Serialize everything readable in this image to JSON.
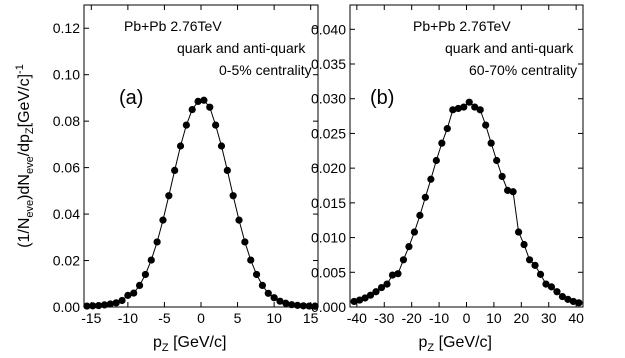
{
  "chart_data": [
    {
      "type": "scatter-line",
      "panel_label": "(a)",
      "annotations": [
        "Pb+Pb 2.76TeV",
        "quark and anti-quark",
        "0-5% centrality"
      ],
      "y_label": [
        {
          "text": "(1/N",
          "pos": "base"
        },
        {
          "text": "eve",
          "pos": "sub"
        },
        {
          "text": ")dN",
          "pos": "base"
        },
        {
          "text": "eve",
          "pos": "sub"
        },
        {
          "text": "/dp",
          "pos": "base"
        },
        {
          "text": "Z",
          "pos": "sub"
        },
        {
          "text": "[GeV/c]",
          "pos": "base"
        },
        {
          "text": "-1",
          "pos": "sup"
        }
      ],
      "x_label": [
        {
          "text": "p",
          "pos": "base"
        },
        {
          "text": "Z",
          "pos": "sub"
        },
        {
          "text": " [GeV/c]",
          "pos": "base"
        }
      ],
      "xlim": [
        -16,
        16
      ],
      "xticks": [
        -15,
        -10,
        -5,
        0,
        5,
        10,
        15
      ],
      "ylim": [
        0,
        0.13
      ],
      "yticks": [
        {
          "value": 0,
          "label": "0.00"
        },
        {
          "value": 0.02,
          "label": "0.02"
        },
        {
          "value": 0.04,
          "label": "0.04"
        },
        {
          "value": 0.06,
          "label": "0.06"
        },
        {
          "value": 0.08,
          "label": "0.08"
        },
        {
          "value": 0.1,
          "label": "0.10"
        },
        {
          "value": 0.12,
          "label": "0.12"
        }
      ],
      "color": "#000000",
      "x": [
        -15.6,
        -14.8,
        -14.0,
        -13.2,
        -12.4,
        -11.6,
        -10.8,
        -10.0,
        -9.2,
        -8.4,
        -7.6,
        -6.8,
        -6.0,
        -5.2,
        -4.4,
        -3.6,
        -2.8,
        -2.0,
        -1.2,
        -0.4,
        0.4,
        1.2,
        2.0,
        2.8,
        3.6,
        4.4,
        5.2,
        6.0,
        6.8,
        7.6,
        8.4,
        9.2,
        10.0,
        10.8,
        11.6,
        12.4,
        13.2,
        14.0,
        14.8,
        15.6
      ],
      "values": [
        0.0004,
        0.0005,
        0.0006,
        0.0009,
        0.0013,
        0.0018,
        0.0028,
        0.005,
        0.006,
        0.0093,
        0.014,
        0.0202,
        0.028,
        0.0374,
        0.0479,
        0.0588,
        0.0693,
        0.0783,
        0.085,
        0.0885,
        0.089,
        0.086,
        0.0783,
        0.0693,
        0.0588,
        0.0479,
        0.0374,
        0.028,
        0.0202,
        0.014,
        0.0093,
        0.0059,
        0.004,
        0.0025,
        0.0016,
        0.001,
        0.0007,
        0.0005,
        0.0004,
        0.0003
      ]
    },
    {
      "type": "scatter-line",
      "panel_label": "(b)",
      "annotations": [
        "Pb+Pb 2.76TeV",
        "quark and anti-quark",
        "60-70% centrality"
      ],
      "x_label": [
        {
          "text": "p",
          "pos": "base"
        },
        {
          "text": "Z",
          "pos": "sub"
        },
        {
          "text": " [GeV/c]",
          "pos": "base"
        }
      ],
      "xlim": [
        -42.5,
        42.5
      ],
      "xticks": [
        -40,
        -30,
        -20,
        -10,
        0,
        10,
        20,
        30,
        40
      ],
      "ylim": [
        0,
        0.0435
      ],
      "yticks": [
        {
          "value": 0,
          "label": "0.000"
        },
        {
          "value": 0.005,
          "label": "0.005"
        },
        {
          "value": 0.01,
          "label": "0.010"
        },
        {
          "value": 0.015,
          "label": "0.015"
        },
        {
          "value": 0.02,
          "label": "0.020"
        },
        {
          "value": 0.025,
          "label": "0.025"
        },
        {
          "value": 0.03,
          "label": "0.030"
        },
        {
          "value": 0.035,
          "label": "0.035"
        },
        {
          "value": 0.04,
          "label": "0.040"
        }
      ],
      "color": "#000000",
      "x": [
        -41,
        -39,
        -37,
        -35,
        -33,
        -31,
        -29,
        -27,
        -25,
        -23,
        -21,
        -19,
        -17,
        -15,
        -13,
        -11,
        -9,
        -7,
        -5,
        -3,
        -1,
        1,
        3,
        5,
        7,
        9,
        11,
        13,
        15,
        17,
        19,
        21,
        23,
        25,
        27,
        29,
        31,
        33,
        35,
        37,
        39,
        41
      ],
      "values": [
        0.0008,
        0.001,
        0.0013,
        0.0017,
        0.0022,
        0.0028,
        0.0033,
        0.0046,
        0.0048,
        0.0068,
        0.0087,
        0.0108,
        0.0132,
        0.0158,
        0.0184,
        0.0211,
        0.0236,
        0.0257,
        0.0284,
        0.0286,
        0.0288,
        0.0295,
        0.0288,
        0.0284,
        0.0262,
        0.0236,
        0.0211,
        0.0188,
        0.0168,
        0.0166,
        0.0108,
        0.009,
        0.0068,
        0.006,
        0.0047,
        0.0033,
        0.0029,
        0.0022,
        0.0015,
        0.0011,
        0.0008,
        0.0006
      ]
    }
  ]
}
